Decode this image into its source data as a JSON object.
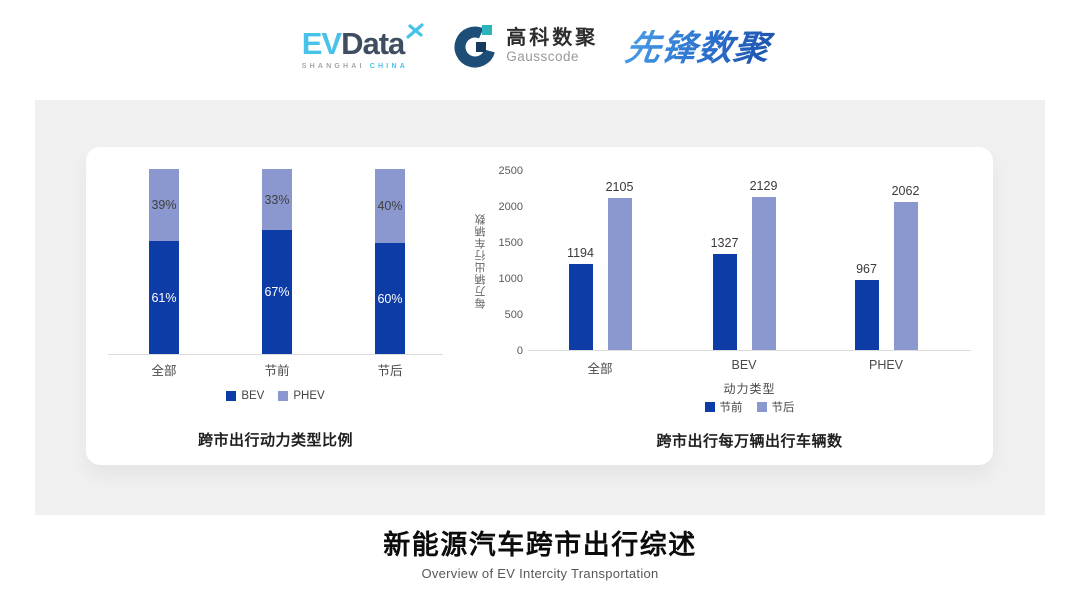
{
  "header": {
    "evdata": {
      "ev": "EV",
      "data": "Data",
      "sub_left": "SHANGHAI",
      "sub_right": "CHINA"
    },
    "gausscode": {
      "cn": "高科数聚",
      "en": "Gausscode"
    },
    "pioneer": {
      "text": "先锋数聚"
    }
  },
  "colors": {
    "series_dark_blue": "#0d3ca6",
    "series_light_blue": "#8b97cf",
    "brand_cyan": "#47c2ea",
    "brand_navy": "#3e4e60",
    "gauss_teal": "#2db4ba",
    "pioneer_blue": "#2b6fcc",
    "panel_gray": "#f0f0f1"
  },
  "chart_data": [
    {
      "type": "bar",
      "variant": "stacked-percent",
      "title": "跨市出行动力类型比例",
      "categories": [
        "全部",
        "节前",
        "节后"
      ],
      "series": [
        {
          "name": "BEV",
          "color": "#0d3ca6",
          "values": [
            61,
            67,
            60
          ]
        },
        {
          "name": "PHEV",
          "color": "#8b97cf",
          "values": [
            39,
            33,
            40
          ]
        }
      ],
      "value_suffix": "%",
      "ylim": [
        0,
        100
      ],
      "grid": false,
      "legend_position": "bottom"
    },
    {
      "type": "bar",
      "variant": "grouped",
      "title": "跨市出行每万辆出行车辆数",
      "categories": [
        "全部",
        "BEV",
        "PHEV"
      ],
      "series": [
        {
          "name": "节前",
          "color": "#0d3ca6",
          "values": [
            1194,
            1327,
            967
          ]
        },
        {
          "name": "节后",
          "color": "#8b97cf",
          "values": [
            2105,
            2129,
            2062
          ]
        }
      ],
      "xlabel": "动力类型",
      "ylabel": "每万辆出行车辆数",
      "yticks": [
        0,
        500,
        1000,
        1500,
        2000,
        2500
      ],
      "ylim": [
        0,
        2500
      ],
      "grid": false,
      "legend_position": "bottom"
    }
  ],
  "footer": {
    "title": "新能源汽车跨市出行综述",
    "subtitle": "Overview of EV Intercity Transportation"
  }
}
